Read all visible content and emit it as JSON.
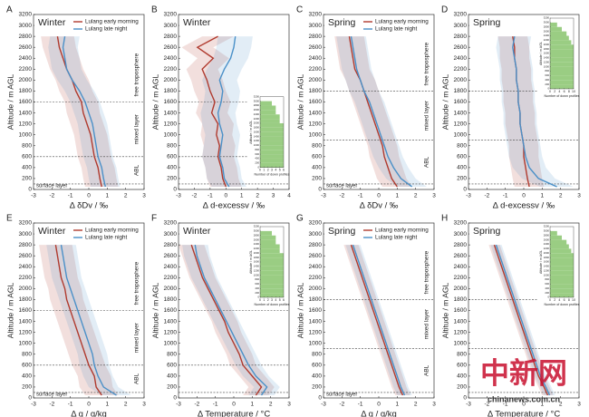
{
  "chart_data": [
    {
      "type": "line",
      "panel": "A",
      "title": "Winter",
      "xlabel": "Δ δDv / ‰",
      "ylabel": "Altitude / m AGL",
      "xlim": [
        -3,
        3
      ],
      "xticks": [
        -3,
        -2,
        -1,
        0,
        1,
        2,
        3
      ],
      "ylim": [
        0,
        3200
      ],
      "yticks": [
        0,
        200,
        400,
        600,
        800,
        1000,
        1200,
        1400,
        1600,
        1800,
        2000,
        2200,
        2400,
        2600,
        2800,
        3000,
        3200
      ],
      "altitudes": [
        50,
        200,
        400,
        600,
        800,
        1000,
        1200,
        1400,
        1600,
        1800,
        2000,
        2200,
        2400,
        2600,
        2800
      ],
      "series": [
        {
          "name": "Lulang early morning",
          "color": "#b03a2e",
          "spread": 0.9,
          "values": [
            0.7,
            0.6,
            0.5,
            0.3,
            0.2,
            0.1,
            -0.1,
            -0.3,
            -0.4,
            -0.7,
            -0.9,
            -1.2,
            -1.4,
            -1.6,
            -1.7
          ]
        },
        {
          "name": "Lulang late night",
          "color": "#4a90c8",
          "spread": 0.8,
          "values": [
            0.9,
            0.8,
            0.7,
            0.5,
            0.4,
            0.3,
            0.2,
            0.0,
            -0.2,
            -0.5,
            -0.9,
            -1.2,
            -1.3,
            -1.4,
            -1.3
          ]
        }
      ],
      "legend": "upper right",
      "layer_tops": [
        100,
        600,
        1600
      ],
      "layer_labels": [
        "surface layer",
        "ABL",
        "mixed layer",
        "free troposphere"
      ]
    },
    {
      "type": "line",
      "panel": "B",
      "title": "Winter",
      "xlabel": "Δ d-excessv / ‰",
      "ylabel": "Altitude / m AGL",
      "xlim": [
        -3,
        4
      ],
      "xticks": [
        -3,
        -2,
        -1,
        0,
        1,
        2,
        3,
        4
      ],
      "ylim": [
        0,
        3200
      ],
      "yticks": [
        0,
        200,
        400,
        600,
        800,
        1000,
        1200,
        1400,
        1600,
        1800,
        2000,
        2200,
        2400,
        2600,
        2800,
        3000,
        3200
      ],
      "altitudes": [
        50,
        200,
        400,
        600,
        800,
        1000,
        1200,
        1400,
        1600,
        1800,
        2000,
        2200,
        2400,
        2600,
        2800
      ],
      "series": [
        {
          "color": "#b03a2e",
          "spread": 1.0,
          "values": [
            0.0,
            -0.2,
            -0.3,
            -0.5,
            -0.4,
            -0.6,
            -0.5,
            -0.9,
            -0.7,
            -1.0,
            -1.2,
            -1.5,
            -0.8,
            -1.8,
            -0.5
          ]
        },
        {
          "color": "#4a90c8",
          "spread": 1.1,
          "values": [
            0.2,
            -0.1,
            -0.2,
            -0.4,
            -0.3,
            -0.2,
            -0.4,
            -0.5,
            -0.3,
            -0.2,
            -0.4,
            -0.1,
            0.3,
            0.5,
            0.6
          ]
        }
      ],
      "layer_tops": [
        100,
        600,
        1600
      ],
      "inset": {
        "corner": "lower right",
        "color": "#9acd83",
        "xlabel": "Number of down profiles",
        "ylabel": "Altitude / m AGL",
        "xlim": [
          0,
          6
        ],
        "xticks": [
          0,
          1,
          2,
          3,
          4,
          5,
          6
        ],
        "ylim": [
          0,
          3200
        ],
        "yticks": [
          0,
          200,
          400,
          600,
          800,
          1000,
          1200,
          1400,
          1600,
          1800,
          2000,
          2200,
          2400,
          2600,
          2800,
          3000,
          3200
        ],
        "bins": [
          0,
          200,
          400,
          600,
          800,
          1000,
          1200,
          1400,
          1600,
          1800,
          2000,
          2200,
          2400,
          2600,
          2800,
          3000
        ],
        "values": [
          6,
          6,
          6,
          6,
          6,
          6,
          6,
          6,
          6,
          6,
          5,
          5,
          4,
          4,
          3
        ]
      }
    },
    {
      "type": "line",
      "panel": "C",
      "title": "Spring",
      "xlabel": "Δ δDv / ‰",
      "ylabel": "Altitude / m AGL",
      "xlim": [
        -3,
        3
      ],
      "xticks": [
        -3,
        -2,
        -1,
        0,
        1,
        2,
        3
      ],
      "ylim": [
        0,
        3200
      ],
      "yticks": [
        0,
        200,
        400,
        600,
        800,
        1000,
        1200,
        1400,
        1600,
        1800,
        2000,
        2200,
        2400,
        2600,
        2800,
        3000,
        3200
      ],
      "altitudes": [
        50,
        200,
        400,
        600,
        800,
        1000,
        1200,
        1400,
        1600,
        1800,
        2000,
        2200,
        2400,
        2600,
        2800
      ],
      "series": [
        {
          "name": "Lulang early morning",
          "color": "#b03a2e",
          "spread": 0.8,
          "values": [
            1.0,
            0.7,
            0.5,
            0.3,
            0.2,
            0.0,
            -0.2,
            -0.4,
            -0.6,
            -0.8,
            -1.0,
            -1.3,
            -1.4,
            -1.5,
            -1.6
          ]
        },
        {
          "name": "Lulang late night",
          "color": "#4a90c8",
          "spread": 0.8,
          "values": [
            1.8,
            1.2,
            0.8,
            0.5,
            0.3,
            0.1,
            -0.1,
            -0.3,
            -0.5,
            -0.8,
            -1.0,
            -1.2,
            -1.3,
            -1.4,
            -1.5
          ]
        }
      ],
      "legend": "upper right",
      "layer_tops": [
        100,
        900,
        1800
      ],
      "layer_labels": [
        "surface layer",
        "ABL",
        "mixed layer",
        "free troposphere"
      ]
    },
    {
      "type": "line",
      "panel": "D",
      "title": "Spring",
      "xlabel": "Δ d-excessv / ‰",
      "ylabel": "Altitude / m AGL",
      "xlim": [
        -3,
        3
      ],
      "xticks": [
        -3,
        -2,
        -1,
        0,
        1,
        2,
        3
      ],
      "ylim": [
        0,
        3200
      ],
      "yticks": [
        0,
        200,
        400,
        600,
        800,
        1000,
        1200,
        1400,
        1600,
        1800,
        2000,
        2200,
        2400,
        2600,
        2800,
        3000,
        3200
      ],
      "altitudes": [
        50,
        200,
        400,
        600,
        800,
        1000,
        1200,
        1400,
        1600,
        1800,
        2000,
        2200,
        2400,
        2600,
        2800
      ],
      "series": [
        {
          "color": "#b03a2e",
          "spread": 0.8,
          "values": [
            0.3,
            0.2,
            0.1,
            0.0,
            0.0,
            -0.1,
            -0.2,
            -0.2,
            -0.3,
            -0.3,
            -0.4,
            -0.4,
            -0.5,
            -0.5,
            -0.6
          ]
        },
        {
          "color": "#4a90c8",
          "spread": 0.9,
          "values": [
            1.8,
            0.8,
            0.3,
            0.1,
            0.0,
            -0.1,
            -0.2,
            -0.2,
            -0.3,
            -0.3,
            -0.4,
            -0.4,
            -0.5,
            -0.6,
            -0.5
          ]
        }
      ],
      "layer_tops": [
        100,
        900,
        1800
      ],
      "inset": {
        "corner": "upper right",
        "color": "#9acd83",
        "xlabel": "Number of down profiles",
        "ylabel": "Altitude / m AGL",
        "xlim": [
          0,
          10
        ],
        "xticks": [
          0,
          2,
          4,
          6,
          8,
          10
        ],
        "ylim": [
          0,
          3200
        ],
        "yticks": [
          0,
          200,
          400,
          600,
          800,
          1000,
          1200,
          1400,
          1600,
          1800,
          2000,
          2200,
          2400,
          2600,
          2800,
          3000,
          3200
        ],
        "bins": [
          0,
          200,
          400,
          600,
          800,
          1000,
          1200,
          1400,
          1600,
          1800,
          2000,
          2200,
          2400,
          2600,
          2800,
          3000
        ],
        "values": [
          10,
          10,
          10,
          10,
          10,
          10,
          10,
          10,
          10,
          10,
          9,
          8,
          7,
          5,
          3
        ]
      }
    },
    {
      "type": "line",
      "panel": "E",
      "title": "Winter",
      "xlabel": "Δ q / g/kg",
      "ylabel": "Altitude / m AGL",
      "xlim": [
        -3,
        3
      ],
      "xticks": [
        -3,
        -2,
        -1,
        0,
        1,
        2,
        3
      ],
      "ylim": [
        0,
        3200
      ],
      "yticks": [
        0,
        200,
        400,
        600,
        800,
        1000,
        1200,
        1400,
        1600,
        1800,
        2000,
        2200,
        2400,
        2600,
        2800,
        3000,
        3200
      ],
      "altitudes": [
        50,
        200,
        400,
        600,
        800,
        1000,
        1200,
        1400,
        1600,
        1800,
        2000,
        2200,
        2400,
        2600,
        2800
      ],
      "series": [
        {
          "name": "Lulang early morning",
          "color": "#b03a2e",
          "spread": 0.9,
          "values": [
            0.7,
            0.4,
            0.3,
            0.0,
            -0.2,
            -0.4,
            -0.6,
            -0.8,
            -1.0,
            -1.2,
            -1.3,
            -1.5,
            -1.6,
            -1.7,
            -1.8
          ]
        },
        {
          "name": "Lulang late night",
          "color": "#4a90c8",
          "spread": 0.8,
          "values": [
            1.5,
            0.8,
            0.5,
            0.3,
            0.2,
            0.0,
            -0.2,
            -0.4,
            -0.6,
            -0.8,
            -1.0,
            -1.2,
            -1.3,
            -1.4,
            -1.5
          ]
        }
      ],
      "legend": "upper right",
      "layer_tops": [
        100,
        600,
        1600
      ],
      "layer_labels": [
        "surface layer",
        "ABL",
        "mixed layer",
        "free troposphere"
      ]
    },
    {
      "type": "line",
      "panel": "F",
      "title": "Winter",
      "xlabel": "Δ Temperature / °C",
      "ylabel": "Altitude / m AGL",
      "xlim": [
        -3,
        3
      ],
      "xticks": [
        -3,
        -2,
        -1,
        0,
        1,
        2,
        3
      ],
      "ylim": [
        0,
        3200
      ],
      "yticks": [
        0,
        200,
        400,
        600,
        800,
        1000,
        1200,
        1400,
        1600,
        1800,
        2000,
        2200,
        2400,
        2600,
        2800,
        3000,
        3200
      ],
      "altitudes": [
        50,
        200,
        400,
        600,
        800,
        1000,
        1200,
        1400,
        1600,
        1800,
        2000,
        2200,
        2400,
        2600,
        2800
      ],
      "series": [
        {
          "color": "#b03a2e",
          "spread": 0.7,
          "values": [
            1.2,
            1.5,
            1.0,
            0.5,
            0.3,
            0.0,
            -0.3,
            -0.5,
            -0.8,
            -1.1,
            -1.4,
            -1.7,
            -1.9,
            -2.1,
            -2.3
          ]
        },
        {
          "color": "#4a90c8",
          "spread": 0.7,
          "values": [
            1.5,
            1.8,
            1.2,
            0.8,
            0.5,
            0.2,
            -0.1,
            -0.4,
            -0.7,
            -1.0,
            -1.3,
            -1.6,
            -1.8,
            -2.0,
            -2.1
          ]
        }
      ],
      "layer_tops": [
        100,
        600,
        1600
      ],
      "inset": {
        "corner": "upper right",
        "color": "#9acd83",
        "xlabel": "Number of down profiles",
        "ylabel": "Altitude / m AGL",
        "xlim": [
          0,
          6
        ],
        "xticks": [
          0,
          1,
          2,
          3,
          4,
          5,
          6
        ],
        "ylim": [
          0,
          3200
        ],
        "yticks": [
          0,
          200,
          400,
          600,
          800,
          1000,
          1200,
          1400,
          1600,
          1800,
          2000,
          2200,
          2400,
          2600,
          2800,
          3000,
          3200
        ],
        "bins": [
          0,
          200,
          400,
          600,
          800,
          1000,
          1200,
          1400,
          1600,
          1800,
          2000,
          2200,
          2400,
          2600,
          2800,
          3000
        ],
        "values": [
          6,
          6,
          6,
          6,
          6,
          6,
          6,
          6,
          6,
          6,
          5,
          5,
          4,
          4,
          3
        ]
      }
    },
    {
      "type": "line",
      "panel": "G",
      "title": "Spring",
      "xlabel": "Δ q / g/kg",
      "ylabel": "Altitude / m AGL",
      "xlim": [
        -3,
        3
      ],
      "xticks": [
        -3,
        -2,
        -1,
        0,
        1,
        2,
        3
      ],
      "ylim": [
        0,
        3200
      ],
      "yticks": [
        0,
        200,
        400,
        600,
        800,
        1000,
        1200,
        1400,
        1600,
        1800,
        2000,
        2200,
        2400,
        2600,
        2800,
        3000,
        3200
      ],
      "altitudes": [
        50,
        200,
        400,
        600,
        800,
        1000,
        1200,
        1400,
        1600,
        1800,
        2000,
        2200,
        2400,
        2600,
        2800
      ],
      "series": [
        {
          "name": "Lulang early morning",
          "color": "#b03a2e",
          "spread": 0.4,
          "values": [
            1.3,
            1.1,
            0.9,
            0.7,
            0.5,
            0.3,
            0.1,
            -0.1,
            -0.3,
            -0.5,
            -0.7,
            -0.9,
            -1.1,
            -1.3,
            -1.5
          ]
        },
        {
          "name": "Lulang late night",
          "color": "#4a90c8",
          "spread": 0.4,
          "values": [
            1.4,
            1.2,
            1.0,
            0.8,
            0.6,
            0.4,
            0.2,
            0.0,
            -0.2,
            -0.4,
            -0.6,
            -0.8,
            -1.0,
            -1.2,
            -1.4
          ]
        }
      ],
      "legend": "upper right",
      "layer_tops": [
        100,
        900,
        1800
      ],
      "layer_labels": [
        "surface layer",
        "ABL",
        "mixed layer",
        "free troposphere"
      ]
    },
    {
      "type": "line",
      "panel": "H",
      "title": "Spring",
      "xlabel": "Δ Temperature / °C",
      "ylabel": "Altitude / m AGL",
      "xlim": [
        -3,
        3
      ],
      "xticks": [
        -3,
        -2,
        -1,
        0,
        1,
        2,
        3
      ],
      "ylim": [
        0,
        3200
      ],
      "yticks": [
        0,
        200,
        400,
        600,
        800,
        1000,
        1200,
        1400,
        1600,
        1800,
        2000,
        2200,
        2400,
        2600,
        2800,
        3000,
        3200
      ],
      "altitudes": [
        50,
        200,
        400,
        600,
        800,
        1000,
        1200,
        1400,
        1600,
        1800,
        2000,
        2200,
        2400,
        2600,
        2800
      ],
      "series": [
        {
          "color": "#b03a2e",
          "spread": 0.3,
          "values": [
            1.3,
            1.1,
            0.8,
            0.6,
            0.4,
            0.2,
            0.0,
            -0.2,
            -0.4,
            -0.6,
            -0.8,
            -1.0,
            -1.2,
            -1.4,
            -1.6
          ]
        },
        {
          "color": "#4a90c8",
          "spread": 0.3,
          "values": [
            1.4,
            1.2,
            0.9,
            0.7,
            0.5,
            0.3,
            0.1,
            -0.1,
            -0.3,
            -0.5,
            -0.7,
            -0.9,
            -1.1,
            -1.3,
            -1.5
          ]
        }
      ],
      "layer_tops": [
        100,
        900,
        1800
      ],
      "inset": {
        "corner": "upper right",
        "color": "#9acd83",
        "xlabel": "Number of down profiles",
        "ylabel": "Altitude / m AGL",
        "xlim": [
          0,
          10
        ],
        "xticks": [
          0,
          2,
          4,
          6,
          8,
          10
        ],
        "ylim": [
          0,
          3200
        ],
        "yticks": [
          0,
          200,
          400,
          600,
          800,
          1000,
          1200,
          1400,
          1600,
          1800,
          2000,
          2200,
          2400,
          2600,
          2800,
          3000,
          3200
        ],
        "bins": [
          0,
          200,
          400,
          600,
          800,
          1000,
          1200,
          1400,
          1600,
          1800,
          2000,
          2200,
          2400,
          2600,
          2800,
          3000
        ],
        "values": [
          10,
          10,
          10,
          10,
          10,
          10,
          10,
          10,
          10,
          10,
          9,
          8,
          7,
          5,
          3
        ]
      }
    }
  ],
  "watermark": {
    "logo": "中新网",
    "site": "chinanews.com.cn"
  }
}
